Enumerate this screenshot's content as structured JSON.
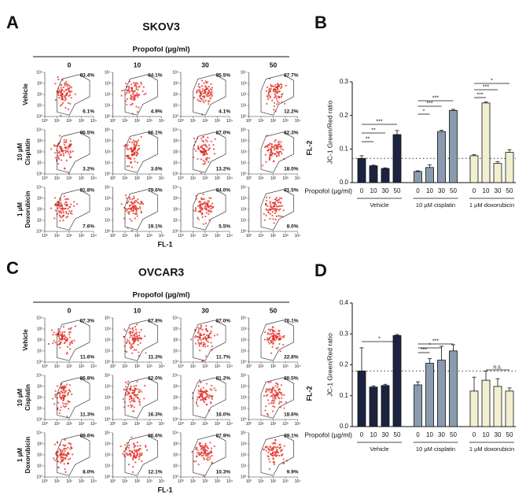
{
  "chart_data": [
    {
      "type": "flow",
      "panel": "A",
      "title": "SKOV3",
      "header": "Propofol (µg/ml)",
      "columns": [
        "0",
        "10",
        "30",
        "50"
      ],
      "rows": [
        [
          "Vehicle"
        ],
        [
          "10 µM",
          "Cisplatin"
        ],
        [
          "1 µM",
          "Doxorubicin"
        ]
      ],
      "xlabel": "FL-1",
      "ylabel": "FL-2",
      "log": true,
      "color": "#e0251b",
      "xlim": [
        1,
        10000
      ],
      "ylim": [
        1,
        10000
      ],
      "xticks": [
        {
          "value": 1,
          "label": "10⁰"
        },
        {
          "value": 10,
          "label": "10¹"
        },
        {
          "value": 100,
          "label": "10²"
        },
        {
          "value": 1000,
          "label": "10³"
        },
        {
          "value": 10000,
          "label": "10⁴"
        }
      ],
      "yticks": [
        {
          "value": 1,
          "label": "10⁰"
        },
        {
          "value": 10,
          "label": "10¹"
        },
        {
          "value": 100,
          "label": "10²"
        },
        {
          "value": 1000,
          "label": "10³"
        },
        {
          "value": 10000,
          "label": "10⁴"
        }
      ],
      "upper": {
        "values": [
          [
            93.4,
            94.1,
            95.5,
            87.7
          ],
          [
            96.5,
            96.1,
            87.0,
            82.3
          ],
          [
            91.8,
            79.6,
            94.0,
            91.5
          ]
        ],
        "value_labels": [
          [
            "93.4%",
            "94.1%",
            "95.5%",
            "87.7%"
          ],
          [
            "96.5%",
            "96.1%",
            "87.0%",
            "82.3%"
          ],
          [
            "91.8%",
            "79.6%",
            "94.0%",
            "91.5%"
          ]
        ]
      },
      "lower": {
        "values": [
          [
            6.1,
            4.9,
            4.1,
            12.2
          ],
          [
            3.2,
            3.6,
            13.2,
            18.0
          ],
          [
            7.6,
            19.1,
            5.5,
            8.0
          ]
        ],
        "value_labels": [
          [
            "6.1%",
            "4.9%",
            "4.1%",
            "12.2%"
          ],
          [
            "3.2%",
            "3.6%",
            "13.2%",
            "18.0%"
          ],
          [
            "7.6%",
            "19.1%",
            "5.5%",
            "8.0%"
          ]
        ]
      }
    },
    {
      "type": "bar",
      "panel": "B",
      "ylabel": "JC-1 Green/Red ratio",
      "xlabel": "Propofol (µg/ml)",
      "categories": [
        "0",
        "10",
        "30",
        "50",
        "0",
        "10",
        "30",
        "50",
        "0",
        "10",
        "30",
        "50"
      ],
      "groups": [
        "Vehicle",
        "10 µM cisplatin",
        "1 µM doxorubicin"
      ],
      "group_colors": [
        "#1c2340",
        "#8a9bb0",
        "#f2f0d0"
      ],
      "values": [
        0.072,
        0.05,
        0.042,
        0.143,
        0.033,
        0.045,
        0.152,
        0.215,
        0.08,
        0.237,
        0.057,
        0.09
      ],
      "errors": [
        0.008,
        0.002,
        0.002,
        0.012,
        0.002,
        0.008,
        0.004,
        0.003,
        0.003,
        0.003,
        0.005,
        0.008
      ],
      "ylim": [
        0,
        0.3
      ],
      "yticks": [
        {
          "value": 0,
          "label": "0.0"
        },
        0.1,
        0.2,
        0.3
      ],
      "reference_line": 0.072,
      "significance": [
        "**",
        "**",
        "***",
        "*",
        "***",
        "***",
        "***",
        "***",
        "*"
      ]
    },
    {
      "type": "flow",
      "panel": "C",
      "title": "OVCAR3",
      "header": "Propofol (µg/ml)",
      "columns": [
        "0",
        "10",
        "30",
        "50"
      ],
      "rows": [
        [
          "Vehicle"
        ],
        [
          "10 µM",
          "Cisplatin"
        ],
        [
          "1 µM",
          "Doxorubicin"
        ]
      ],
      "xlabel": "FL-1",
      "ylabel": "FL-2",
      "log": true,
      "color": "#e0251b",
      "xlim": [
        1,
        10000
      ],
      "ylim": [
        1,
        10000
      ],
      "xticks": [
        {
          "value": 1,
          "label": "10⁰"
        },
        {
          "value": 10,
          "label": "10¹"
        },
        {
          "value": 100,
          "label": "10²"
        },
        {
          "value": 1000,
          "label": "10³"
        },
        {
          "value": 10000,
          "label": "10⁴"
        }
      ],
      "yticks": [
        {
          "value": 1,
          "label": "10⁰"
        },
        {
          "value": 10,
          "label": "10¹"
        },
        {
          "value": 100,
          "label": "10²"
        },
        {
          "value": 1000,
          "label": "10³"
        },
        {
          "value": 10000,
          "label": "10⁴"
        }
      ],
      "upper": {
        "values": [
          [
            87.3,
            87.8,
            87.0,
            76.1
          ],
          [
            86.8,
            82.0,
            81.2,
            80.5
          ],
          [
            89.6,
            86.6,
            87.9,
            89.1
          ]
        ],
        "value_labels": [
          [
            "87.3%",
            "87.8%",
            "87.0%",
            "76.1%"
          ],
          [
            "86.8%",
            "82.0%",
            "81.2%",
            "80.5%"
          ],
          [
            "89.6%",
            "86.6%",
            "87.9%",
            "89.1%"
          ]
        ]
      },
      "lower": {
        "values": [
          [
            11.6,
            11.3,
            11.7,
            22.8
          ],
          [
            11.3,
            16.3,
            16.0,
            18.6
          ],
          [
            8.0,
            12.1,
            10.3,
            9.9
          ]
        ],
        "value_labels": [
          [
            "11.6%",
            "11.3%",
            "11.7%",
            "22.8%"
          ],
          [
            "11.3%",
            "16.3%",
            "16.0%",
            "18.6%"
          ],
          [
            "8.0%",
            "12.1%",
            "10.3%",
            "9.9%"
          ]
        ]
      }
    },
    {
      "type": "bar",
      "panel": "D",
      "ylabel": "JC-1 Green/Red ratio",
      "xlabel": "Propofol (µg/ml)",
      "categories": [
        "0",
        "10",
        "30",
        "50",
        "0",
        "10",
        "30",
        "50",
        "0",
        "10",
        "30",
        "50"
      ],
      "groups": [
        "Vehicle",
        "10 µM cisplatin",
        "1 µM doxorubicin"
      ],
      "group_colors": [
        "#1c2340",
        "#8a9bb0",
        "#f2f0d0"
      ],
      "values": [
        0.18,
        0.128,
        0.133,
        0.295,
        0.135,
        0.205,
        0.215,
        0.245,
        0.115,
        0.15,
        0.13,
        0.115
      ],
      "errors": [
        0.075,
        0.004,
        0.004,
        0.003,
        0.01,
        0.015,
        0.045,
        0.02,
        0.045,
        0.03,
        0.025,
        0.01
      ],
      "ylim": [
        0,
        0.4
      ],
      "yticks": [
        {
          "value": 0,
          "label": "0.0"
        },
        0.1,
        0.2,
        0.3,
        0.4
      ],
      "reference_line": 0.18,
      "significance": [
        "*",
        "***",
        "*",
        "***",
        "n.s."
      ]
    }
  ]
}
